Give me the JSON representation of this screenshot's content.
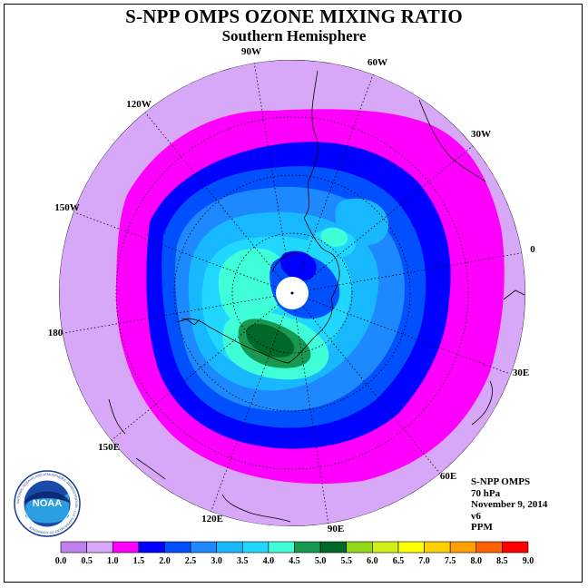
{
  "header": {
    "title": "S-NPP OMPS OZONE MIXING RATIO",
    "subtitle": "Southern Hemisphere"
  },
  "map": {
    "longitude_labels": [
      "90W",
      "60W",
      "30W",
      "0",
      "30E",
      "60E",
      "90E",
      "120E",
      "150E",
      "180",
      "150W",
      "120W"
    ]
  },
  "info": {
    "instrument": "S-NPP OMPS",
    "level": "70 hPa",
    "date": "November 9, 2014",
    "version": "v6",
    "units": "PPM"
  },
  "colorbar": {
    "tick_labels": [
      "0.0",
      "0.5",
      "1.0",
      "1.5",
      "2.0",
      "2.5",
      "3.0",
      "3.5",
      "4.0",
      "4.5",
      "5.0",
      "5.5",
      "6.0",
      "6.5",
      "7.0",
      "7.5",
      "8.0",
      "8.5",
      "9.0"
    ],
    "colors": [
      "#c080f0",
      "#d8a8f8",
      "#ff00ff",
      "#0000ff",
      "#0050ff",
      "#1e88ff",
      "#18b8ff",
      "#20d8ff",
      "#40ffd8",
      "#189850",
      "#006828",
      "#90d818",
      "#d0f018",
      "#ffff00",
      "#ffd000",
      "#ffa000",
      "#ff6000",
      "#ff0000",
      "#805030"
    ]
  },
  "logo": {
    "text": "NOAA",
    "ring_text": "NATIONAL OCEANIC AND ATMOSPHERIC ADMINISTRATION · U.S. DEPARTMENT OF COMMERCE"
  }
}
